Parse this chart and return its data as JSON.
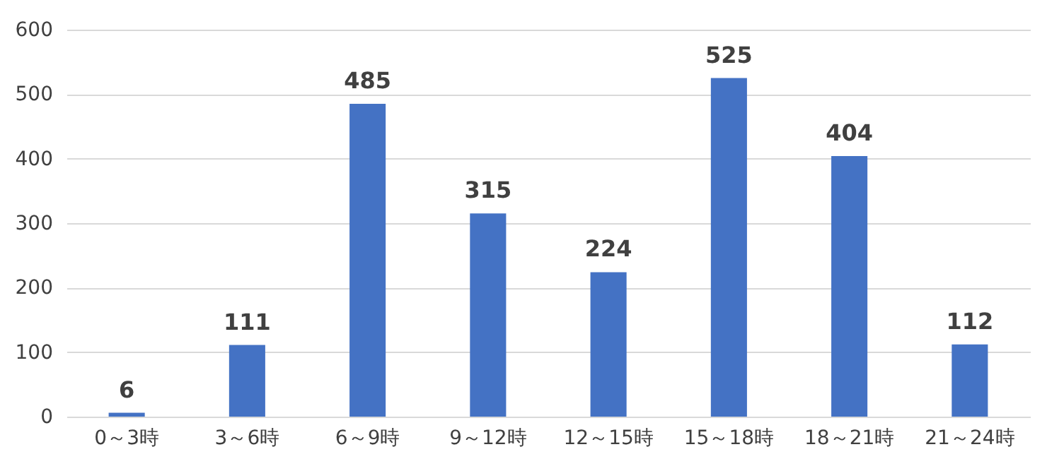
{
  "chart_data": {
    "type": "bar",
    "categories": [
      "0～3時",
      "3～6時",
      "6～9時",
      "9～12時",
      "12～15時",
      "15～18時",
      "18～21時",
      "21～24時"
    ],
    "values": [
      6,
      111,
      485,
      315,
      224,
      525,
      404,
      112
    ],
    "color": "#4472c4",
    "ylim": [
      0,
      600
    ],
    "yticks": [
      0,
      100,
      200,
      300,
      400,
      500,
      600
    ],
    "grid": "y",
    "data_labels": true
  }
}
